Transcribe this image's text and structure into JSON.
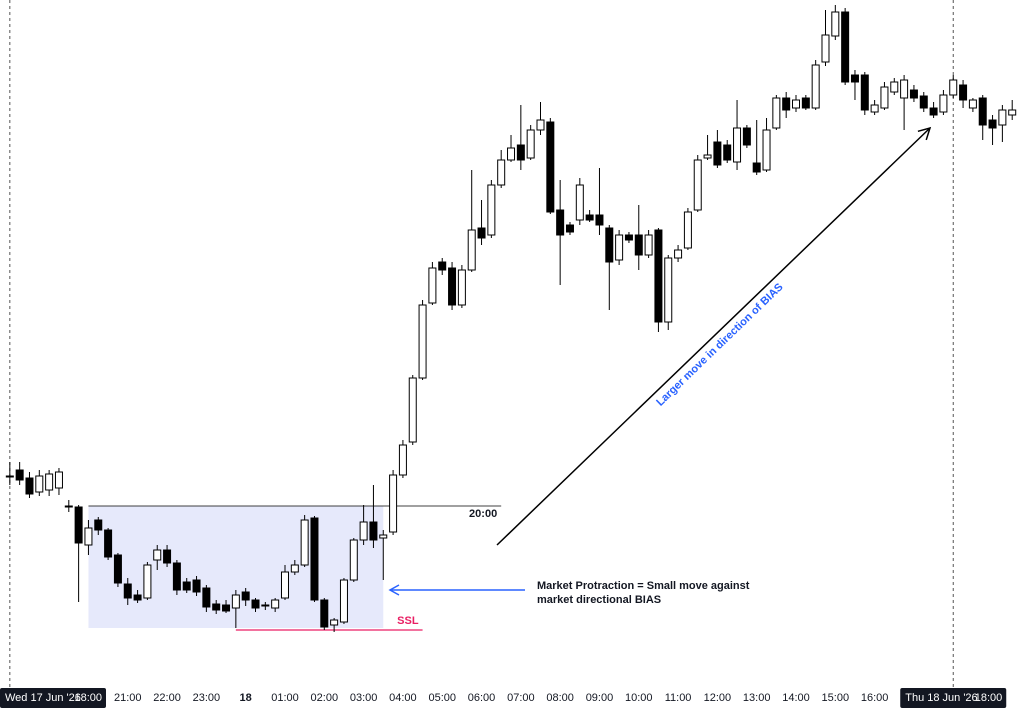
{
  "chart_data": {
    "type": "candlestick",
    "x": [
      18,
      18.25,
      18.5,
      18.75,
      19,
      19.25,
      19.5,
      19.75,
      20,
      20.25,
      20.5,
      20.75,
      21,
      21.25,
      21.5,
      21.75,
      22,
      22.25,
      22.5,
      22.75,
      23,
      23.25,
      23.5,
      23.75,
      24,
      24.25,
      24.5,
      24.75,
      25,
      25.25,
      25.5,
      25.75,
      26,
      26.25,
      26.5,
      26.75,
      27,
      27.25,
      27.5,
      27.75,
      28,
      28.25,
      28.5,
      28.75,
      29,
      29.25,
      29.5,
      29.75,
      30,
      30.25,
      30.5,
      30.75,
      31,
      31.25,
      31.5,
      31.75,
      32,
      32.25,
      32.5,
      32.75,
      33,
      33.25,
      33.5,
      33.75,
      34,
      34.25,
      34.5,
      34.75,
      35,
      35.25,
      35.5,
      35.75,
      36,
      36.25,
      36.5,
      36.75,
      37,
      37.25,
      37.5,
      37.75,
      38,
      38.25,
      38.5,
      38.75,
      39,
      39.25,
      39.5,
      39.75,
      40,
      40.25,
      40.5,
      40.75,
      41,
      41.25,
      41.5,
      41.75,
      42,
      42.25,
      42.5,
      42.75,
      43,
      43.25,
      43.5
    ],
    "open": [
      223,
      230,
      222,
      208,
      210,
      212,
      194,
      193,
      155,
      180,
      170,
      145,
      116,
      105,
      102,
      140,
      150,
      137,
      118,
      120,
      112,
      96,
      95,
      92,
      108,
      100,
      94,
      92,
      102,
      128,
      135,
      182,
      100,
      75,
      78,
      120,
      160,
      178,
      162,
      168,
      225,
      258,
      322,
      397,
      438,
      432,
      395,
      430,
      472,
      465,
      515,
      540,
      555,
      542,
      570,
      578,
      490,
      475,
      480,
      485,
      485,
      472,
      440,
      465,
      465,
      445,
      470,
      378,
      442,
      452,
      490,
      542,
      558,
      555,
      538,
      572,
      537,
      530,
      572,
      602,
      592,
      602,
      592,
      638,
      664,
      688,
      625,
      625,
      588,
      592,
      608,
      602,
      610,
      604,
      592,
      588,
      605,
      615,
      592,
      602,
      580,
      575,
      585
    ],
    "high": [
      238,
      238,
      228,
      230,
      230,
      232,
      200,
      195,
      180,
      183,
      172,
      147,
      122,
      110,
      138,
      155,
      155,
      140,
      122,
      124,
      115,
      100,
      100,
      110,
      112,
      102,
      98,
      102,
      135,
      140,
      185,
      184,
      102,
      82,
      122,
      162,
      195,
      215,
      170,
      230,
      260,
      325,
      400,
      438,
      442,
      438,
      435,
      530,
      500,
      520,
      550,
      565,
      595,
      575,
      598,
      582,
      520,
      478,
      522,
      490,
      532,
      475,
      470,
      468,
      495,
      470,
      472,
      445,
      455,
      492,
      545,
      565,
      570,
      560,
      600,
      575,
      580,
      582,
      605,
      608,
      605,
      605,
      640,
      690,
      695,
      692,
      630,
      628,
      600,
      618,
      622,
      625,
      615,
      608,
      598,
      610,
      625,
      620,
      602,
      605,
      585,
      595,
      600
    ],
    "low": [
      215,
      215,
      202,
      204,
      204,
      205,
      188,
      98,
      145,
      165,
      140,
      113,
      95,
      97,
      100,
      130,
      133,
      105,
      107,
      104,
      88,
      86,
      87,
      72,
      94,
      88,
      90,
      88,
      100,
      125,
      133,
      98,
      70,
      68,
      76,
      118,
      155,
      152,
      120,
      165,
      222,
      255,
      320,
      395,
      425,
      390,
      392,
      428,
      455,
      462,
      512,
      538,
      530,
      540,
      565,
      486,
      415,
      465,
      475,
      478,
      465,
      390,
      435,
      457,
      430,
      442,
      368,
      370,
      438,
      450,
      488,
      540,
      532,
      537,
      530,
      552,
      525,
      528,
      570,
      582,
      588,
      590,
      590,
      634,
      660,
      615,
      600,
      585,
      585,
      590,
      605,
      570,
      598,
      588,
      582,
      585,
      602,
      592,
      588,
      560,
      555,
      558,
      580
    ],
    "close": [
      224,
      220,
      206,
      224,
      226,
      228,
      193,
      157,
      172,
      170,
      143,
      117,
      102,
      100,
      135,
      150,
      137,
      110,
      110,
      108,
      93,
      90,
      89,
      105,
      100,
      92,
      95,
      100,
      128,
      135,
      180,
      100,
      73,
      80,
      120,
      160,
      178,
      160,
      165,
      225,
      255,
      322,
      395,
      432,
      430,
      395,
      430,
      470,
      462,
      515,
      540,
      552,
      540,
      570,
      580,
      488,
      465,
      468,
      515,
      480,
      475,
      438,
      465,
      460,
      445,
      465,
      378,
      442,
      450,
      488,
      540,
      545,
      535,
      540,
      572,
      555,
      528,
      570,
      602,
      590,
      600,
      592,
      635,
      665,
      688,
      618,
      618,
      590,
      595,
      613,
      618,
      620,
      602,
      592,
      585,
      605,
      620,
      600,
      600,
      575,
      572,
      590,
      590
    ],
    "up_color": "#ffffff",
    "down_color": "#000000",
    "xlim": [
      17.75,
      43.8
    ],
    "ylim": [
      0,
      700
    ],
    "xticks": [
      {
        "value": 21,
        "label": "21:00"
      },
      {
        "value": 22,
        "label": "22:00"
      },
      {
        "value": 23,
        "label": "23:00"
      },
      {
        "value": 24,
        "label": "18"
      },
      {
        "value": 25,
        "label": "01:00"
      },
      {
        "value": 26,
        "label": "02:00"
      },
      {
        "value": 27,
        "label": "03:00"
      },
      {
        "value": 28,
        "label": "04:00"
      },
      {
        "value": 29,
        "label": "05:00"
      },
      {
        "value": 30,
        "label": "06:00"
      },
      {
        "value": 31,
        "label": "07:00"
      },
      {
        "value": 32,
        "label": "08:00"
      },
      {
        "value": 33,
        "label": "09:00"
      },
      {
        "value": 34,
        "label": "10:00"
      },
      {
        "value": 35,
        "label": "11:00"
      },
      {
        "value": 36,
        "label": "12:00"
      },
      {
        "value": 37,
        "label": "13:00"
      },
      {
        "value": 38,
        "label": "14:00"
      },
      {
        "value": 39,
        "label": "15:00"
      },
      {
        "value": 40,
        "label": "16:00"
      }
    ],
    "session_markers": [
      {
        "value": 18,
        "date": "Wed 17 Jun '26",
        "time": "18:00"
      },
      {
        "value": 42,
        "date": "Thu 18 Jun '26",
        "time": "18:00"
      }
    ],
    "level_line": {
      "label": "20:00",
      "value": 194,
      "from": 20,
      "to": 30.5
    },
    "range_box": {
      "from": 20,
      "to": 27.5,
      "low": 72,
      "high": 194
    },
    "ssl_line": {
      "label": "SSL",
      "value": 70,
      "from": 23.75,
      "to": 28.5
    },
    "annotations": {
      "protraction": [
        "Market Protraction = Small move against",
        "market directional BIAS"
      ],
      "bias_move": "Larger move in direction of BIAS"
    }
  }
}
